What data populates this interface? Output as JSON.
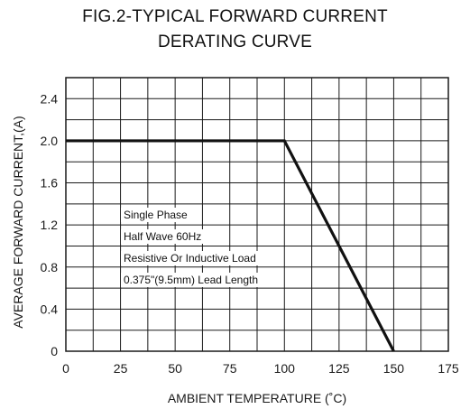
{
  "chart_data": {
    "type": "line",
    "title_line1": "FIG.2-TYPICAL FORWARD CURRENT",
    "title_line2": "DERATING CURVE",
    "xlabel": "AMBIENT TEMPERATURE (˚C)",
    "ylabel": "AVERAGE FORWARD CURRENT,(A)",
    "xlim": [
      0,
      175
    ],
    "ylim": [
      0,
      2.6
    ],
    "x_ticks": [
      0,
      25,
      50,
      75,
      100,
      125,
      150,
      175
    ],
    "x_tick_labels": [
      "0",
      "25",
      "50",
      "75",
      "100",
      "125",
      "150",
      "175"
    ],
    "y_ticks": [
      0,
      0.4,
      0.8,
      1.2,
      1.6,
      2.0,
      2.4
    ],
    "y_tick_labels": [
      "0",
      "0.4",
      "0.8",
      "1.2",
      "1.6",
      "2.0",
      "2.4"
    ],
    "grid": true,
    "series": [
      {
        "x": [
          0,
          100,
          150
        ],
        "y": [
          2.0,
          2.0,
          0
        ]
      }
    ],
    "annotations": [
      "Single Phase",
      "Half Wave 60Hz",
      "Resistive Or Inductive Load",
      "0.375\"(9.5mm) Lead Length"
    ],
    "colors": {
      "line": "#111111",
      "grid": "#1a1a1a",
      "background": "#ffffff"
    }
  }
}
